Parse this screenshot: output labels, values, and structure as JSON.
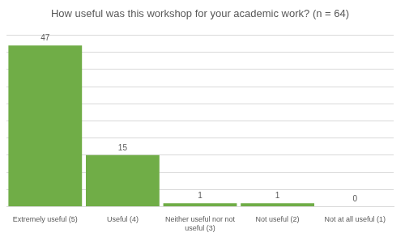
{
  "chart_data": {
    "type": "bar",
    "title": "How useful was this workshop for your academic work? (n = 64)",
    "categories": [
      "Extremely useful (5)",
      "Useful (4)",
      "Neither useful nor not useful (3)",
      "Not useful (2)",
      "Not at all useful (1)"
    ],
    "values": [
      47,
      15,
      1,
      1,
      0
    ],
    "color": "#70ad47",
    "ylim": [
      0,
      50
    ],
    "yticks": [
      0,
      5,
      10,
      15,
      20,
      25,
      30,
      35,
      40,
      45,
      50
    ],
    "grid": true,
    "data_labels": true,
    "tick_labels": "x"
  }
}
